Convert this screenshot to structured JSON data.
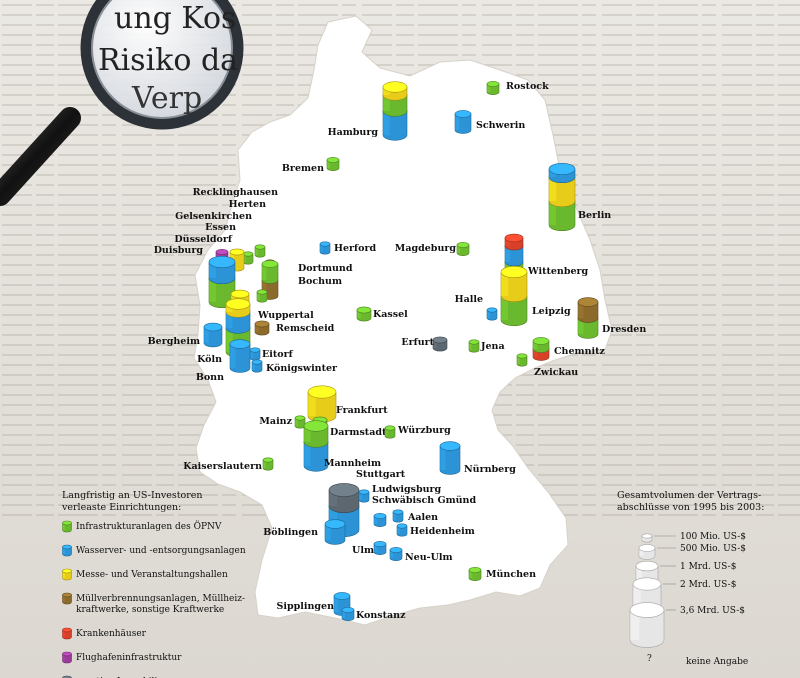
{
  "magnifier_text": [
    "ung Kos",
    "Risiko da",
    "Verp"
  ],
  "colors": {
    "oepnv": "#6ab82e",
    "wasser": "#2b93d6",
    "messe": "#e8cc1a",
    "muell": "#8b6a2c",
    "kranken": "#d8402a",
    "flughafen": "#9a3c9a",
    "sonstige": "#5c6770"
  },
  "legend": {
    "title_line1": "Langfristig an US-Investoren",
    "title_line2": "verleaste Einrichtungen:",
    "items": [
      {
        "color": "#6ab82e",
        "lines": [
          "Infrastrukturanlagen des ÖPNV"
        ]
      },
      {
        "color": "#2b93d6",
        "lines": [
          "Wasserver- und -entsorgungsanlagen"
        ]
      },
      {
        "color": "#e8cc1a",
        "lines": [
          "Messe- und Veranstaltungshallen"
        ]
      },
      {
        "color": "#8b6a2c",
        "lines": [
          "Müllverbrennungsanlagen, Müllheiz-",
          "kraftwerke, sonstige Kraftwerke"
        ]
      },
      {
        "color": "#d8402a",
        "lines": [
          "Krankenhäuser"
        ]
      },
      {
        "color": "#9a3c9a",
        "lines": [
          "Flughafeninfrastruktur"
        ]
      },
      {
        "color": "#5c6770",
        "lines": [
          "sonstige Immobilien"
        ]
      }
    ]
  },
  "volume_legend": {
    "title_line1": "Gesamtvolumen der Vertrags-",
    "title_line2": "abschlüsse von 1995 bis 2003:",
    "items": [
      "100 Mio. US-$",
      "500 Mio. US-$",
      "1 Mrd. US-$",
      "2 Mrd. US-$",
      "3,6 Mrd. US-$"
    ],
    "unknown_label": "keine Angabe"
  },
  "cities": [
    {
      "name": "Rostock",
      "stack": [
        [
          "oepnv",
          1
        ]
      ]
    },
    {
      "name": "Hamburg",
      "stack": [
        [
          "wasser",
          3
        ],
        [
          "oepnv",
          2
        ],
        [
          "messe",
          1
        ]
      ]
    },
    {
      "name": "Schwerin",
      "stack": [
        [
          "wasser",
          2
        ]
      ]
    },
    {
      "name": "Bremen",
      "stack": [
        [
          "oepnv",
          1
        ]
      ]
    },
    {
      "name": "Berlin",
      "stack": [
        [
          "oepnv",
          3
        ],
        [
          "messe",
          3
        ],
        [
          "wasser",
          1
        ]
      ]
    },
    {
      "name": "Recklinghausen",
      "stack": [
        [
          "oepnv",
          1
        ]
      ]
    },
    {
      "name": "Herten",
      "stack": [
        [
          "muell",
          1
        ]
      ]
    },
    {
      "name": "Gelsenkirchen",
      "stack": [
        [
          "oepnv",
          1
        ]
      ]
    },
    {
      "name": "Essen",
      "stack": [
        [
          "messe",
          2
        ]
      ]
    },
    {
      "name": "Düsseldorf",
      "stack": [
        [
          "flughafen",
          2
        ]
      ]
    },
    {
      "name": "Duisburg",
      "stack": [
        [
          "oepnv",
          3
        ],
        [
          "wasser",
          2
        ]
      ]
    },
    {
      "name": "Herford",
      "stack": [
        [
          "wasser",
          1
        ]
      ]
    },
    {
      "name": "Magdeburg",
      "stack": [
        [
          "oepnv",
          1
        ]
      ]
    },
    {
      "name": "Dortmund",
      "stack": [
        [
          "muell",
          2
        ],
        [
          "oepnv",
          2
        ]
      ]
    },
    {
      "name": "Bochum",
      "stack": [
        [
          "oepnv",
          1
        ]
      ]
    },
    {
      "name": "Wittenberg",
      "stack": [
        [
          "oepnv",
          2
        ],
        [
          "wasser",
          2
        ],
        [
          "kranken",
          1
        ]
      ]
    },
    {
      "name": "Halle",
      "stack": [
        [
          "wasser",
          1
        ]
      ]
    },
    {
      "name": "Leipzig",
      "stack": [
        [
          "oepnv",
          3
        ],
        [
          "messe",
          3
        ]
      ]
    },
    {
      "name": "Wuppertal",
      "stack": [
        [
          "oepnv",
          2
        ],
        [
          "messe",
          1
        ]
      ]
    },
    {
      "name": "Remscheid",
      "stack": [
        [
          "muell",
          1
        ]
      ]
    },
    {
      "name": "Kassel",
      "stack": [
        [
          "oepnv",
          1
        ]
      ]
    },
    {
      "name": "Dresden",
      "stack": [
        [
          "oepnv",
          2
        ],
        [
          "muell",
          2
        ]
      ]
    },
    {
      "name": "Erfurt",
      "stack": [
        [
          "sonstige",
          1
        ]
      ]
    },
    {
      "name": "Jena",
      "stack": [
        [
          "oepnv",
          1
        ]
      ]
    },
    {
      "name": "Chemnitz",
      "stack": [
        [
          "kranken",
          1
        ],
        [
          "oepnv",
          1
        ]
      ]
    },
    {
      "name": "Zwickau",
      "stack": [
        [
          "oepnv",
          1
        ]
      ]
    },
    {
      "name": "Bergheim",
      "stack": [
        [
          "wasser",
          2
        ]
      ]
    },
    {
      "name": "Köln",
      "stack": [
        [
          "oepnv",
          3
        ],
        [
          "wasser",
          2
        ],
        [
          "messe",
          1
        ]
      ]
    },
    {
      "name": "Eitorf",
      "stack": [
        [
          "wasser",
          1
        ]
      ]
    },
    {
      "name": "Bonn",
      "stack": [
        [
          "wasser",
          3
        ]
      ]
    },
    {
      "name": "Königswinter",
      "stack": [
        [
          "wasser",
          1
        ]
      ]
    },
    {
      "name": "Frankfurt",
      "stack": [
        [
          "messe",
          3
        ]
      ]
    },
    {
      "name": "Mainz",
      "stack": [
        [
          "oepnv",
          1
        ]
      ]
    },
    {
      "name": "Darmstadt",
      "stack": [
        [
          "oepnv",
          2
        ]
      ]
    },
    {
      "name": "Würzburg",
      "stack": [
        [
          "oepnv",
          1
        ]
      ]
    },
    {
      "name": "Kaiserslautern",
      "stack": [
        [
          "oepnv",
          1
        ]
      ]
    },
    {
      "name": "Mannheim",
      "stack": [
        [
          "wasser",
          3
        ],
        [
          "oepnv",
          2
        ]
      ]
    },
    {
      "name": "Nürnberg",
      "stack": [
        [
          "wasser",
          3
        ]
      ]
    },
    {
      "name": "Stuttgart",
      "stack": [
        [
          "wasser",
          3
        ],
        [
          "sonstige",
          2
        ]
      ]
    },
    {
      "name": "Ludwigsburg",
      "stack": [
        [
          "wasser",
          1
        ]
      ]
    },
    {
      "name": "Schwäbisch Gmünd",
      "stack": [
        [
          "wasser",
          1
        ]
      ]
    },
    {
      "name": "Aalen",
      "stack": [
        [
          "wasser",
          1
        ]
      ]
    },
    {
      "name": "Heidenheim",
      "stack": [
        [
          "wasser",
          1
        ]
      ]
    },
    {
      "name": "Böblingen",
      "stack": [
        [
          "wasser",
          2
        ]
      ]
    },
    {
      "name": "Ulm",
      "stack": [
        [
          "wasser",
          1
        ]
      ]
    },
    {
      "name": "Neu-Ulm",
      "stack": [
        [
          "wasser",
          1
        ]
      ]
    },
    {
      "name": "München",
      "stack": [
        [
          "oepnv",
          1
        ]
      ]
    },
    {
      "name": "Sipplingen",
      "stack": [
        [
          "wasser",
          2
        ]
      ]
    },
    {
      "name": "Konstanz",
      "stack": [
        [
          "wasser",
          1
        ]
      ]
    }
  ]
}
